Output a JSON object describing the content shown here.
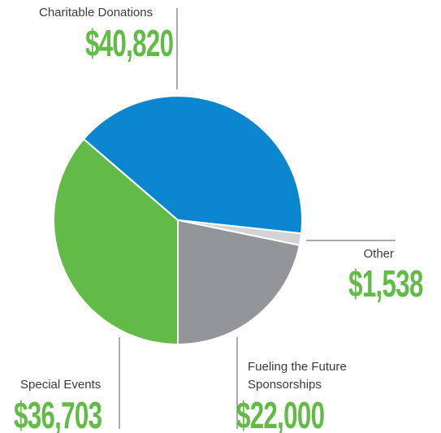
{
  "chart_data": {
    "type": "pie",
    "categories": [
      "Special Events",
      "Charitable Donations",
      "Other",
      "Fueling the Future Sponsorships"
    ],
    "values": [
      36703,
      40820,
      1538,
      22000
    ],
    "value_labels": [
      "$36,703",
      "$40,820",
      "$1,538",
      "$22,000"
    ],
    "colors": [
      "#62bb46",
      "#0a86cf",
      "#d1d3d4",
      "#939598"
    ],
    "label_color": "#62bb46"
  }
}
